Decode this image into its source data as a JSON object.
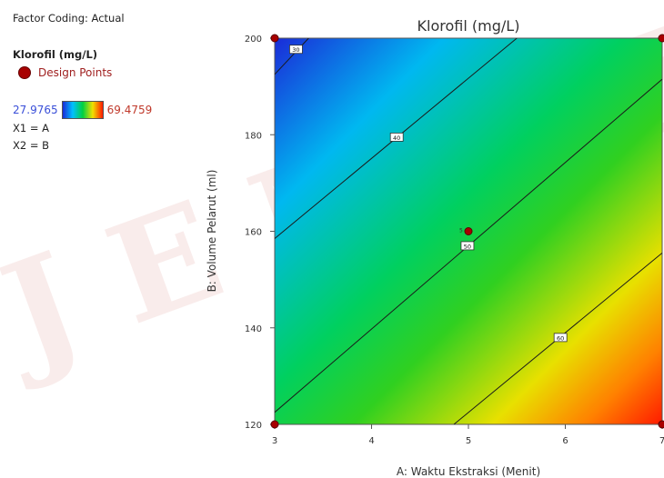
{
  "legend": {
    "factor_coding": "Factor Coding: Actual",
    "response": "Klorofil (mg/L)",
    "design_points": "Design Points",
    "scale_min": "27.9765",
    "scale_max": "69.4759",
    "x1": "X1 = A",
    "x2": "X2 = B"
  },
  "chart_data": {
    "type": "heatmap",
    "subtype": "contour",
    "title": "Klorofil (mg/L)",
    "xlabel": "A: Waktu Ekstraksi (Menit)",
    "ylabel": "B: Volume Pelarut (ml)",
    "xlim": [
      3,
      7
    ],
    "ylim": [
      120,
      200
    ],
    "xticks": [
      3,
      4,
      5,
      6,
      7
    ],
    "yticks": [
      120,
      140,
      160,
      180,
      200
    ],
    "colorscale": {
      "min": 27.9765,
      "max": 69.4759,
      "colors": [
        "#1a2bd8",
        "#00c0ff",
        "#00d040",
        "#f0e000",
        "#ff1a00"
      ]
    },
    "contours": [
      {
        "level": 30,
        "label": "30",
        "points": [
          [
            3,
            192.5
          ],
          [
            3.35,
            200
          ]
        ],
        "label_at": [
          3.22,
          197.7
        ]
      },
      {
        "level": 40,
        "label": "40",
        "points": [
          [
            3,
            158.5
          ],
          [
            5.5,
            200
          ]
        ],
        "label_at": [
          4.26,
          179.5
        ]
      },
      {
        "level": 50,
        "label": "50",
        "points": [
          [
            3,
            122.5
          ],
          [
            7,
            191.5
          ]
        ],
        "label_at": [
          4.99,
          157.0
        ]
      },
      {
        "level": 60,
        "label": "60",
        "points": [
          [
            4.85,
            120
          ],
          [
            7,
            155.5
          ]
        ],
        "label_at": [
          5.95,
          138.0
        ]
      }
    ],
    "design_points": [
      {
        "x": 3,
        "y": 200
      },
      {
        "x": 7,
        "y": 200
      },
      {
        "x": 3,
        "y": 120
      },
      {
        "x": 7,
        "y": 120
      },
      {
        "x": 5,
        "y": 160,
        "label": "5"
      }
    ],
    "grid": false
  }
}
